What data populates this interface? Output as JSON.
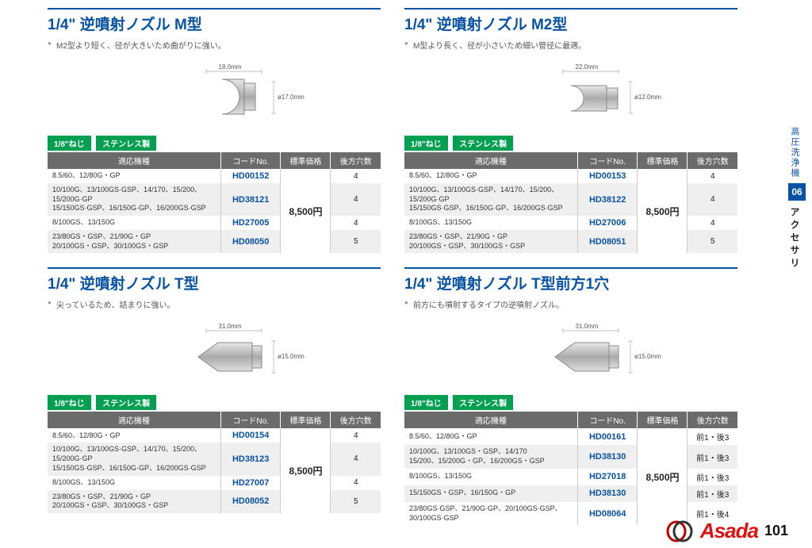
{
  "page_number": "101",
  "brand": "Asada",
  "sidebar": {
    "section_label": "高圧洗浄機",
    "section_number": "06",
    "category": "アクセサリ"
  },
  "columns": {
    "model": "適応機種",
    "code": "コードNo.",
    "price": "標準価格",
    "holes": "後方穴数"
  },
  "badge1": "1/8\"ねじ",
  "badge2": "ステンレス製",
  "price_shared": "8,500円",
  "colors": {
    "brand_blue": "#0752a3",
    "badge_green": "#00a050",
    "header_gray": "#6b6b6b",
    "code_blue": "#0752a3",
    "brand_red": "#d11"
  },
  "products": [
    {
      "title": "1/4\" 逆噴射ノズル M型",
      "desc": "M2型より短く、径が大きいため曲がりに強い。",
      "dim_w": "18.0mm",
      "dim_h": "ø17.0mm",
      "shape": "dome",
      "rows": [
        {
          "model": "8.5/60、12/80G・GP",
          "code": "HD00152",
          "holes": "4"
        },
        {
          "model": "10/100G、13/100GS·GSP、14/170、15/200、15/200G·GP\n15/150GS·GSP、16/150G·GP、16/200GS·GSP",
          "code": "HD38121",
          "holes": "4"
        },
        {
          "model": "8/100GS、13/150G",
          "code": "HD27005",
          "holes": "4"
        },
        {
          "model": "23/80GS・GSP、21/90G・GP\n20/100GS・GSP、30/100GS・GSP",
          "code": "HD08050",
          "holes": "5"
        }
      ]
    },
    {
      "title": "1/4\" 逆噴射ノズル M2型",
      "desc": "M型より長く、径が小さいため細い管径に最適。",
      "dim_w": "22.0mm",
      "dim_h": "ø12.0mm",
      "shape": "dome-long",
      "rows": [
        {
          "model": "8.5/60、12/80G・GP",
          "code": "HD00153",
          "holes": "4"
        },
        {
          "model": "10/100G、13/100GS·GSP、14/170、15/200、15/200G·GP\n15/150GS·GSP、16/150G·GP、16/200GS·GSP",
          "code": "HD38122",
          "holes": "4"
        },
        {
          "model": "8/100GS、13/150G",
          "code": "HD27006",
          "holes": "4"
        },
        {
          "model": "23/80GS・GSP、21/90G・GP\n20/100GS・GSP、30/100GS・GSP",
          "code": "HD08051",
          "holes": "5"
        }
      ]
    },
    {
      "title": "1/4\" 逆噴射ノズル T型",
      "desc": "尖っているため、詰まりに強い。",
      "dim_w": "31.0mm",
      "dim_h": "ø15.0mm",
      "shape": "cone",
      "rows": [
        {
          "model": "8.5/60、12/80G・GP",
          "code": "HD00154",
          "holes": "4"
        },
        {
          "model": "10/100G、13/100GS·GSP、14/170、15/200、15/200G·GP\n15/150GS·GSP、16/150G·GP、16/200GS·GSP",
          "code": "HD38123",
          "holes": "4"
        },
        {
          "model": "8/100GS、13/150G",
          "code": "HD27007",
          "holes": "4"
        },
        {
          "model": "23/80GS・GSP、21/90G・GP\n20/100GS・GSP、30/100GS・GSP",
          "code": "HD08052",
          "holes": "5"
        }
      ]
    },
    {
      "title": "1/4\" 逆噴射ノズル T型前方1穴",
      "desc": "前方にも噴射するタイプの逆噴射ノズル。",
      "dim_w": "31.0mm",
      "dim_h": "ø15.0mm",
      "shape": "cone",
      "rows": [
        {
          "model": "8.5/60、12/80G・GP",
          "code": "HD00161",
          "holes": "前1・後3"
        },
        {
          "model": "10/100G、13/100GS・GSP、14/170\n15/200、15/200G・GP、16/200GS・GSP",
          "code": "HD38130",
          "holes": "前1・後3"
        },
        {
          "model": "8/100GS、13/150G",
          "code": "HD27018",
          "holes": "前1・後3"
        },
        {
          "model": "15/150GS・GSP、16/150G・GP",
          "code": "HD38130",
          "holes": "前1・後3"
        },
        {
          "model": "23/80GS·GSP、21/90G·GP、20/100GS·GSP、30/100GS·GSP",
          "code": "HD08064",
          "holes": "前1・後4"
        }
      ]
    }
  ]
}
